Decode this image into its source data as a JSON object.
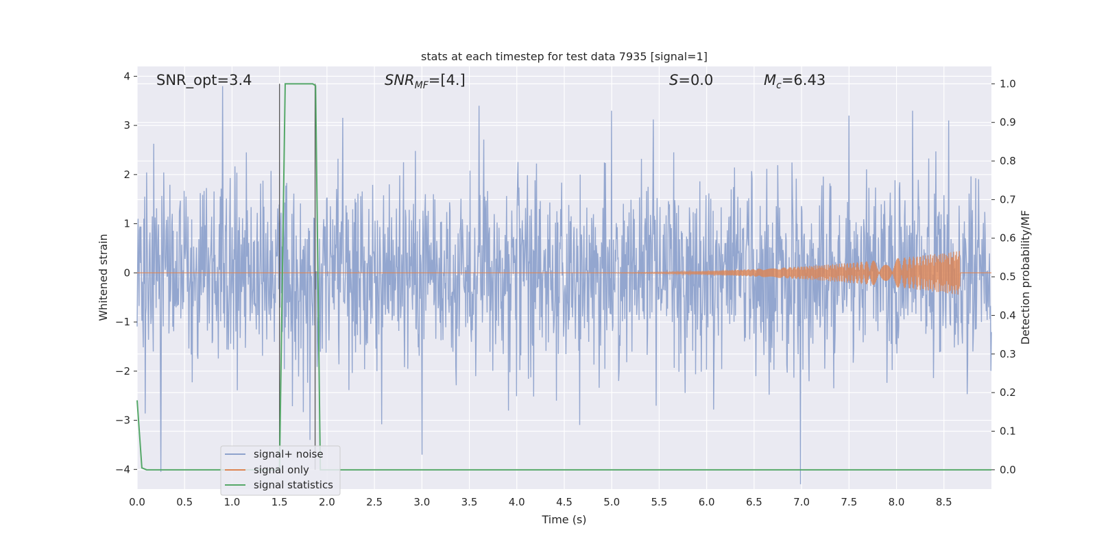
{
  "chart_data": {
    "type": "line",
    "title": "stats at each timestep for test data 7935 [signal=1]",
    "xlabel": "Time (s)",
    "ylabel_left": "Whitened strain",
    "ylabel_right": "Detection probability/MF",
    "xlim": [
      0,
      9.0
    ],
    "ylim_left": [
      -4.4,
      4.2
    ],
    "ylim_right": [
      -0.05,
      1.045
    ],
    "x_ticks": [
      "0.0",
      "0.5",
      "1.0",
      "1.5",
      "2.0",
      "2.5",
      "3.0",
      "3.5",
      "4.0",
      "4.5",
      "5.0",
      "5.5",
      "6.0",
      "6.5",
      "7.0",
      "7.5",
      "8.0",
      "8.5"
    ],
    "y_left_ticks": [
      "−4",
      "−3",
      "−2",
      "−1",
      "0",
      "1",
      "2",
      "3",
      "4"
    ],
    "y_right_ticks": [
      "0.0",
      "0.1",
      "0.2",
      "0.3",
      "0.4",
      "0.5",
      "0.6",
      "0.7",
      "0.8",
      "0.9",
      "1.0"
    ],
    "annotations": {
      "snr_opt": "SNR_opt=3.4",
      "snr_mf_main": "SNR",
      "snr_mf_sub": "MF",
      "snr_mf_val": "=[4.]",
      "s_main": "S",
      "s_val": "=0.0",
      "mc_main": "M",
      "mc_sub": "c",
      "mc_val": "=6.43"
    },
    "legend": {
      "position": "lower-left",
      "entries": [
        "signal+ noise",
        "signal only",
        "signal statistics"
      ]
    },
    "vertical_markers": [
      1.5,
      1.875
    ],
    "series": [
      {
        "name": "signal+ noise",
        "axis": "left",
        "color": "#8ea2cc",
        "noise_sigma": 0.95,
        "n_samples": 1800,
        "spike_x": [
          0.25,
          0.9,
          1.82,
          3.0,
          3.6,
          5.0,
          7.5,
          8.55
        ],
        "spike_y": [
          -4.05,
          3.8,
          -3.4,
          -3.7,
          3.4,
          3.3,
          3.2,
          3.1
        ]
      },
      {
        "name": "signal only",
        "axis": "left",
        "color": "#dd8452",
        "chirp_start": 4.5,
        "chirp_end": 8.67,
        "chirp_peak_amplitude": 0.45
      },
      {
        "name": "signal statistics",
        "axis": "right",
        "color": "#55a868",
        "x": [
          0.0,
          0.05,
          0.1,
          0.15,
          0.2,
          1.45,
          1.5,
          1.56,
          1.6,
          1.85,
          1.88,
          1.93,
          1.97,
          2.05,
          9.0
        ],
        "y": [
          0.18,
          0.005,
          0.0,
          0.0,
          0.0,
          0.0,
          0.0,
          1.0,
          1.0,
          1.0,
          0.995,
          0.0,
          0.0,
          0.0,
          0.0
        ]
      }
    ],
    "colors": {
      "plot_bg": "#eaeaf2",
      "grid": "#ffffff",
      "marker_line": "#555555"
    }
  }
}
